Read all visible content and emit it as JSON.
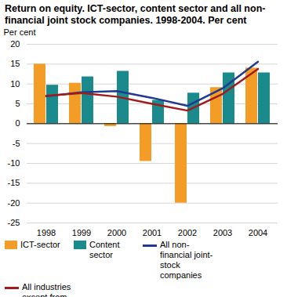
{
  "chart_data": {
    "type": "bar",
    "title": "Return on equity. ICT-sector, content sector and all non-financial joint stock companies. 1998-2004. Per cent",
    "y_label": "Per cent",
    "categories": [
      "1998",
      "1999",
      "2000",
      "2001",
      "2002",
      "2003",
      "2004"
    ],
    "series": [
      {
        "name": "ICT-sector",
        "type": "bar",
        "color": "#f39c26",
        "values": [
          15,
          10.2,
          -0.7,
          -9.5,
          -20,
          9.1,
          14
        ]
      },
      {
        "name": "Content sector",
        "type": "bar",
        "color": "#1b8a8c",
        "values": [
          9.7,
          11.8,
          13.2,
          5.9,
          7.7,
          12.8,
          12.8
        ]
      },
      {
        "name": "All non-financial joint-stock companies",
        "type": "line",
        "color": "#1f3a8f",
        "values": [
          6.9,
          7.9,
          8.2,
          6.5,
          4.5,
          8.9,
          15.6
        ]
      },
      {
        "name": "All industries except from oil and gas",
        "type": "line",
        "color": "#a01c1c",
        "values": [
          7.0,
          7.7,
          6.8,
          5.0,
          3.3,
          7.5,
          13.8
        ]
      }
    ],
    "ylim": [
      -25,
      20
    ],
    "yticks": [
      -25,
      -20,
      -15,
      -10,
      -5,
      0,
      5,
      10,
      15,
      20
    ],
    "grid": true,
    "legend": "bottom"
  }
}
